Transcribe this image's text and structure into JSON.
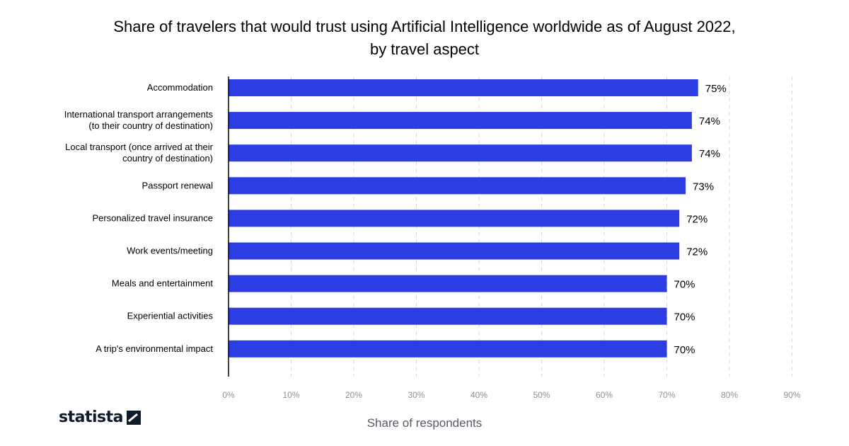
{
  "chart_data": {
    "type": "bar",
    "orientation": "horizontal",
    "title": "Share of travelers that would trust using Artificial Intelligence worldwide as of August 2022, by travel aspect",
    "categories": [
      "Accommodation",
      "International transport arrangements\n(to their country of destination)",
      "Local transport (once arrived at their\ncountry of destination)",
      "Passport renewal",
      "Personalized travel insurance",
      "Work events/meeting",
      "Meals and entertainment",
      "Experiential activities",
      "A trip's environmental impact"
    ],
    "values": [
      75,
      74,
      74,
      73,
      72,
      72,
      70,
      70,
      70
    ],
    "value_labels": [
      "75%",
      "74%",
      "74%",
      "73%",
      "72%",
      "72%",
      "70%",
      "70%",
      "70%"
    ],
    "xlabel": "Share of respondents",
    "ylabel": "",
    "xlim": [
      0,
      90
    ],
    "xticks": [
      0,
      10,
      20,
      30,
      40,
      50,
      60,
      70,
      80,
      90
    ],
    "xtick_labels": [
      "0%",
      "10%",
      "20%",
      "30%",
      "40%",
      "50%",
      "60%",
      "70%",
      "80%",
      "90%"
    ],
    "grid": true,
    "bar_color": "#2b3de3"
  },
  "branding": {
    "logo_text": "statista"
  }
}
